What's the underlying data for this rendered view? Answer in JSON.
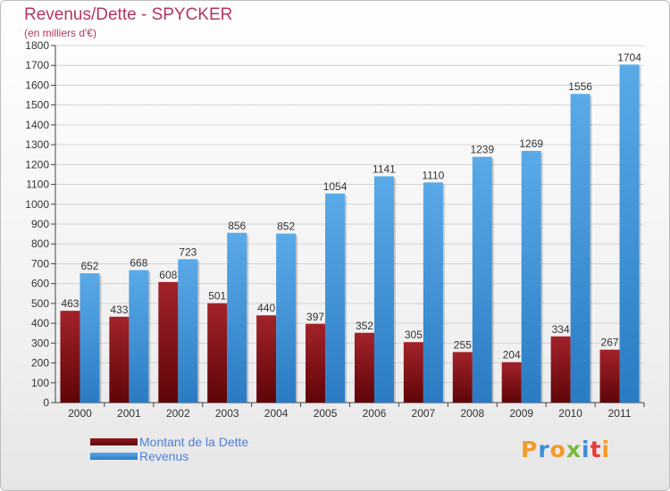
{
  "chart_data": {
    "type": "bar",
    "title": "Revenus/Dette - SPYCKER",
    "subtitle": "(en milliers d'€)",
    "categories": [
      "2000",
      "2001",
      "2002",
      "2003",
      "2004",
      "2005",
      "2006",
      "2007",
      "2008",
      "2009",
      "2010",
      "2011"
    ],
    "series": [
      {
        "name": "Montant de la Dette",
        "color": "#7a0a0e",
        "values": [
          463,
          433,
          608,
          501,
          440,
          397,
          352,
          305,
          255,
          204,
          334,
          267
        ]
      },
      {
        "name": "Revenus",
        "color": "#3d94dc",
        "values": [
          652,
          668,
          723,
          856,
          852,
          1054,
          1141,
          1110,
          1239,
          1269,
          1556,
          1704
        ]
      }
    ],
    "ylim": [
      0,
      1800
    ],
    "yticks": [
      0,
      100,
      200,
      300,
      400,
      500,
      600,
      700,
      800,
      900,
      1000,
      1100,
      1200,
      1300,
      1400,
      1500,
      1600,
      1700,
      1800
    ],
    "grid": true,
    "legend_position": "bottom-left"
  },
  "brand": {
    "text": "Proxiti",
    "letter_colors": [
      "#f29b2a",
      "#3b8fd9",
      "#f29b2a",
      "#7ab83c",
      "#3b8fd9",
      "#e23b3b",
      "#f29b2a"
    ]
  }
}
